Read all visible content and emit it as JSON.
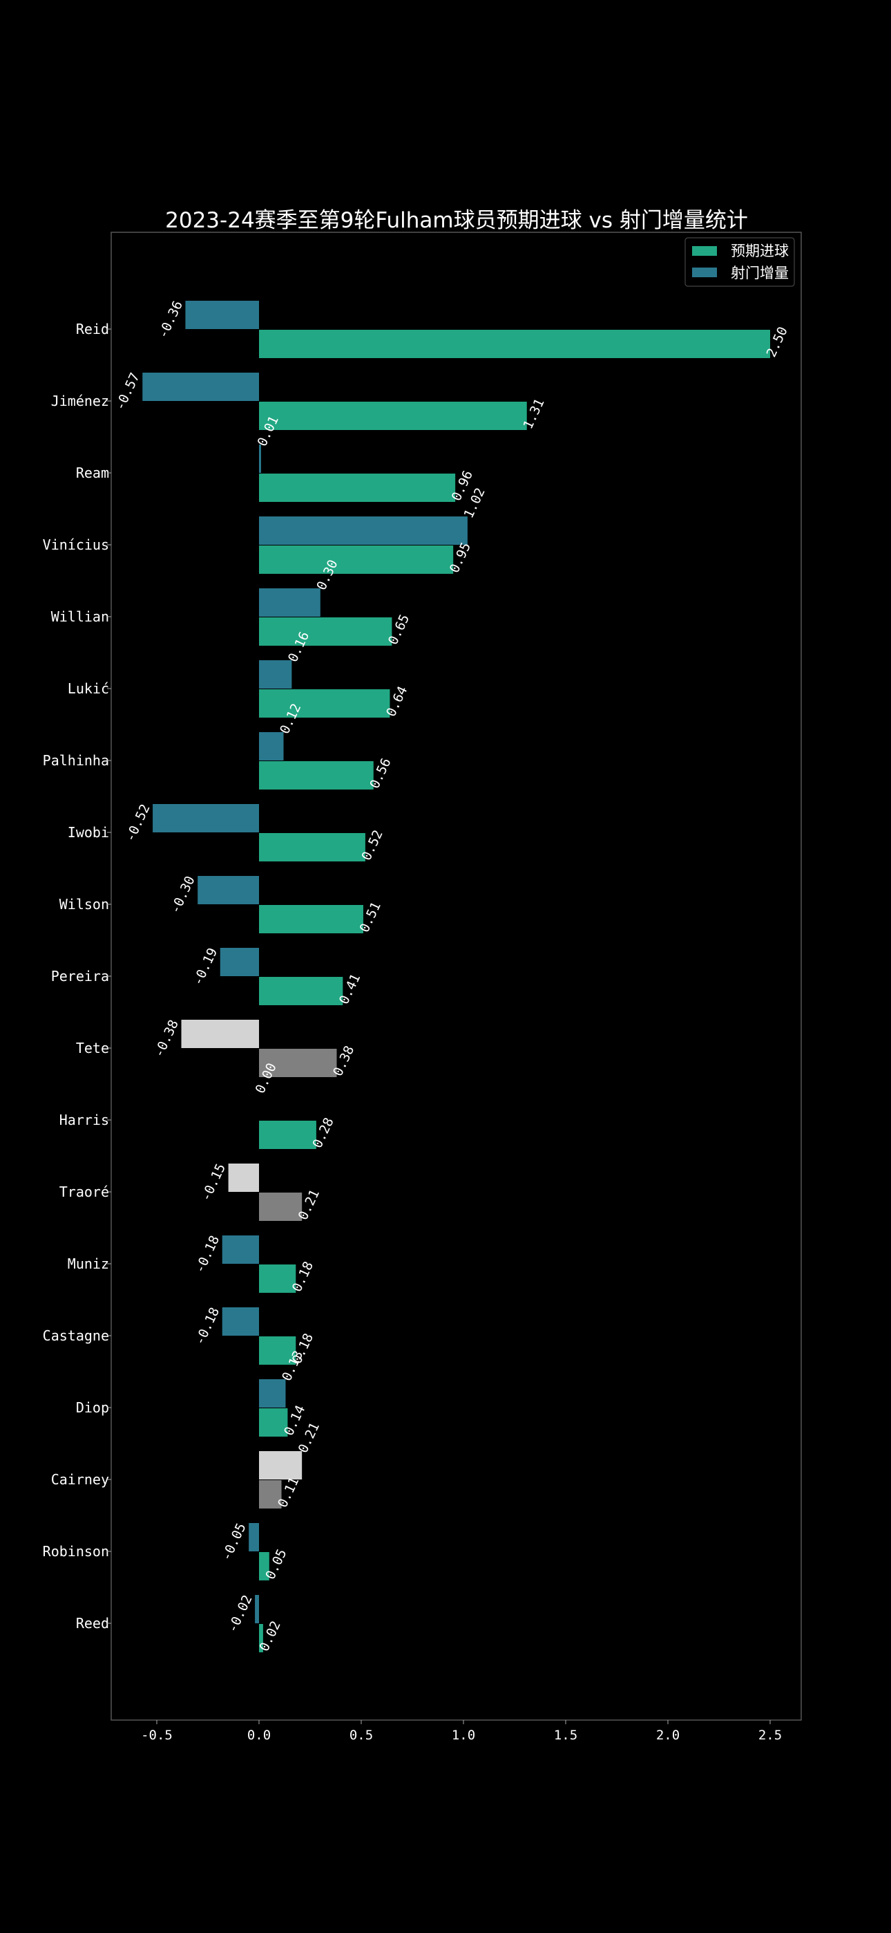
{
  "chart_data": {
    "type": "bar",
    "orientation": "horizontal",
    "title": "2023-24赛季至第9轮Fulham球员预期进球 vs 射门增量统计",
    "xlabel": "",
    "ylabel": "",
    "xlim": [
      -0.72,
      2.65
    ],
    "xticks": [
      -0.5,
      0.0,
      0.5,
      1.0,
      1.5,
      2.0,
      2.5
    ],
    "xtick_labels": [
      "-0.5",
      "0.0",
      "0.5",
      "1.0",
      "1.5",
      "2.0",
      "2.5"
    ],
    "grid": false,
    "legend_position": "top-right",
    "categories": [
      "Reid",
      "Jiménez",
      "Ream",
      "Vinícius",
      "Willian",
      "Lukić",
      "Palhinha",
      "Iwobi",
      "Wilson",
      "Pereira",
      "Tete",
      "Harris",
      "Traoré",
      "Muniz",
      "Castagne",
      "Diop",
      "Cairney",
      "Robinson",
      "Reed"
    ],
    "series": [
      {
        "name": "预期进球",
        "color": "#22a884",
        "values": [
          2.5,
          1.31,
          0.96,
          0.95,
          0.65,
          0.64,
          0.56,
          0.52,
          0.51,
          0.41,
          0.38,
          0.28,
          0.21,
          0.18,
          0.18,
          0.14,
          0.11,
          0.05,
          0.02
        ],
        "labels": [
          "2.50",
          "1.31",
          "0.96",
          "0.95",
          "0.65",
          "0.64",
          "0.56",
          "0.52",
          "0.51",
          "0.41",
          "0.38",
          "0.28",
          "0.21",
          "0.18",
          "0.18",
          "0.14",
          "0.11",
          "0.05",
          "0.02"
        ]
      },
      {
        "name": "射门增量",
        "color": "#2a788e",
        "values": [
          -0.36,
          -0.57,
          0.01,
          1.02,
          0.3,
          0.16,
          0.12,
          -0.52,
          -0.3,
          -0.19,
          -0.38,
          0.0,
          -0.15,
          -0.18,
          -0.18,
          0.13,
          0.21,
          -0.05,
          -0.02
        ],
        "labels": [
          "-0.36",
          "-0.57",
          "0.01",
          "1.02",
          "0.30",
          "0.16",
          "0.12",
          "-0.52",
          "-0.30",
          "-0.19",
          "-0.38",
          "0.00",
          "-0.15",
          "-0.18",
          "-0.18",
          "0.13",
          "0.21",
          "-0.05",
          "-0.02"
        ]
      }
    ],
    "highlighted_players": [
      "Tete",
      "Traoré",
      "Cairney"
    ],
    "highlight_colors": {
      "预期进球": "#808080",
      "射门增量": "#d3d3d3"
    },
    "axes_color": "#555555",
    "background": "#000000"
  }
}
